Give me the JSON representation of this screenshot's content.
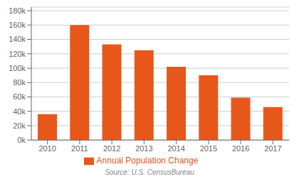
{
  "chart_data": {
    "type": "bar",
    "categories": [
      "2010",
      "2011",
      "2012",
      "2013",
      "2014",
      "2015",
      "2016",
      "2017"
    ],
    "series": [
      {
        "name": "Annual Population Change",
        "color": "#e8571a",
        "values": [
          36000,
          160000,
          133000,
          125000,
          102000,
          90000,
          59000,
          46000
        ]
      }
    ],
    "ylim": [
      0,
      185000
    ],
    "yticks": [
      {
        "value": 0,
        "label": "0k"
      },
      {
        "value": 20000,
        "label": "20k"
      },
      {
        "value": 40000,
        "label": "40k"
      },
      {
        "value": 60000,
        "label": "60k"
      },
      {
        "value": 80000,
        "label": "80k"
      },
      {
        "value": 100000,
        "label": "100k"
      },
      {
        "value": 120000,
        "label": "120k"
      },
      {
        "value": 140000,
        "label": "140k"
      },
      {
        "value": 160000,
        "label": "160k"
      },
      {
        "value": 180000,
        "label": "180k"
      }
    ],
    "grid": true,
    "legend": "bottom",
    "annotation": "Source: U.S. CensusBureau"
  }
}
